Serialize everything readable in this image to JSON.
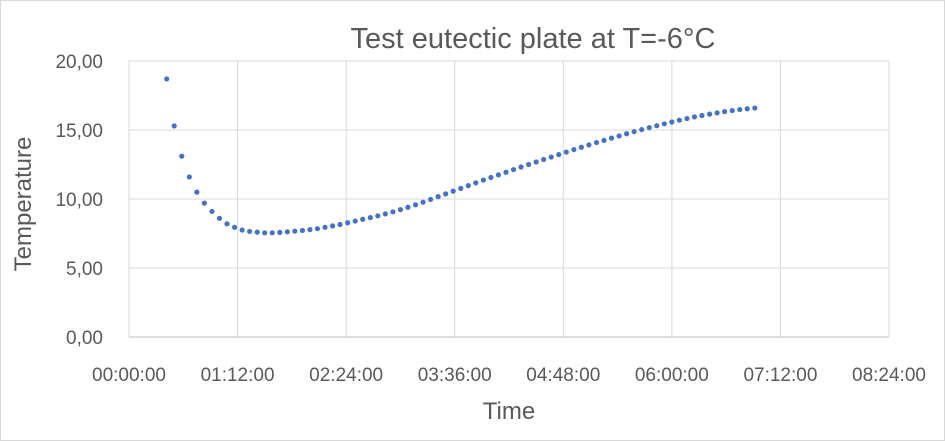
{
  "chart_data": {
    "type": "scatter",
    "title": "Test eutectic plate at T=-6°C",
    "xlabel": "Time",
    "ylabel": "Temperature",
    "x_unit": "hours",
    "xlim": [
      0,
      8.4
    ],
    "ylim": [
      0,
      20
    ],
    "x_ticks": [
      0,
      1.2,
      2.4,
      3.6,
      4.8,
      6.0,
      7.2,
      8.4
    ],
    "x_tick_labels": [
      "00:00:00",
      "01:12:00",
      "02:24:00",
      "03:36:00",
      "04:48:00",
      "06:00:00",
      "07:12:00",
      "08:24:00"
    ],
    "y_ticks": [
      0,
      5,
      10,
      15,
      20
    ],
    "y_tick_labels": [
      "0,00",
      "5,00",
      "10,00",
      "15,00",
      "20,00"
    ],
    "grid": true,
    "legend": "none",
    "marker_color": "#4472c4",
    "series": [
      {
        "x": [
          0.417,
          0.5,
          0.583,
          0.667,
          0.75,
          0.833,
          0.917,
          1.0,
          1.083,
          1.167,
          1.25,
          1.333,
          1.417,
          1.5,
          1.583,
          1.667,
          1.75,
          1.833,
          1.917,
          2.0,
          2.083,
          2.167,
          2.25,
          2.333,
          2.417,
          2.5,
          2.583,
          2.667,
          2.75,
          2.833,
          2.917,
          3.0,
          3.083,
          3.167,
          3.25,
          3.333,
          3.417,
          3.5,
          3.583,
          3.667,
          3.75,
          3.833,
          3.917,
          4.0,
          4.083,
          4.167,
          4.25,
          4.333,
          4.417,
          4.5,
          4.583,
          4.667,
          4.75,
          4.833,
          4.917,
          5.0,
          5.083,
          5.167,
          5.25,
          5.333,
          5.417,
          5.5,
          5.583,
          5.667,
          5.75,
          5.833,
          5.917,
          6.0,
          6.083,
          6.167,
          6.25,
          6.333,
          6.417,
          6.5,
          6.583,
          6.667,
          6.75,
          6.833,
          6.917
        ],
        "y": [
          18.7,
          15.3,
          13.1,
          11.6,
          10.5,
          9.7,
          9.1,
          8.6,
          8.2,
          7.95,
          7.75,
          7.65,
          7.6,
          7.55,
          7.55,
          7.58,
          7.62,
          7.67,
          7.72,
          7.78,
          7.85,
          7.95,
          8.05,
          8.15,
          8.28,
          8.4,
          8.53,
          8.65,
          8.78,
          8.92,
          9.07,
          9.23,
          9.4,
          9.58,
          9.77,
          9.97,
          10.17,
          10.37,
          10.57,
          10.77,
          10.97,
          11.17,
          11.37,
          11.56,
          11.75,
          11.94,
          12.13,
          12.32,
          12.5,
          12.68,
          12.86,
          13.04,
          13.22,
          13.4,
          13.58,
          13.75,
          13.92,
          14.09,
          14.25,
          14.41,
          14.57,
          14.73,
          14.88,
          15.03,
          15.17,
          15.31,
          15.45,
          15.58,
          15.71,
          15.83,
          15.95,
          16.05,
          16.15,
          16.24,
          16.33,
          16.41,
          16.48,
          16.54,
          16.59
        ]
      }
    ]
  }
}
